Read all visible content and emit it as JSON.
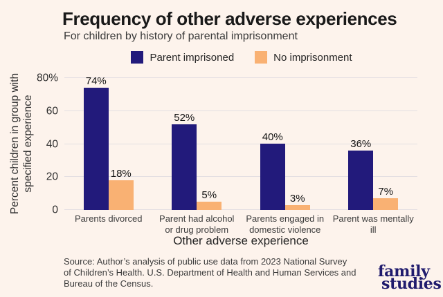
{
  "page": {
    "background": "#fdf3ec"
  },
  "header": {
    "title": "Frequency of other adverse experiences",
    "subtitle": "For children by history of parental imprisonment"
  },
  "legend": {
    "items": [
      {
        "label": "Parent imprisoned",
        "color": "#221a7b"
      },
      {
        "label": "No imprisonment",
        "color": "#f9b173"
      }
    ]
  },
  "chart_data": {
    "type": "bar",
    "title": "Frequency of other adverse experiences",
    "subtitle": "For children by history of parental imprisonment",
    "categories": [
      "Parents divorced",
      "Parent had alcohol or drug problem",
      "Parents engaged in domestic violence",
      "Parent was mentally ill"
    ],
    "series": [
      {
        "name": "Parent imprisoned",
        "color": "#221a7b",
        "values": [
          74,
          52,
          40,
          36
        ],
        "value_labels": [
          "74%",
          "52%",
          "40%",
          "36%"
        ]
      },
      {
        "name": "No imprisonment",
        "color": "#f9b173",
        "values": [
          18,
          5,
          3,
          7
        ],
        "value_labels": [
          "18%",
          "5%",
          "3%",
          "7%"
        ]
      }
    ],
    "xlabel": "Other adverse experience",
    "ylabel": "Percent children in group with specified experience",
    "ylabel_lines": [
      "Percent children in group with",
      "specified experience"
    ],
    "ylim": [
      0,
      80
    ],
    "yticks": [
      {
        "value": 0,
        "label": "0"
      },
      {
        "value": 20,
        "label": "20"
      },
      {
        "value": 40,
        "label": "40"
      },
      {
        "value": 60,
        "label": "60"
      },
      {
        "value": 80,
        "label": "80%"
      }
    ],
    "grid": true,
    "legend_position": "top-center"
  },
  "source": {
    "lines": [
      "Source: Author’s analysis of public use data from 2023 National Survey",
      "of Children’s Health. U.S. Department of Health and Human Services and",
      "Bureau of the Census."
    ]
  },
  "logo": {
    "line1": "family",
    "line2": "studies",
    "color": "#201b6d"
  }
}
